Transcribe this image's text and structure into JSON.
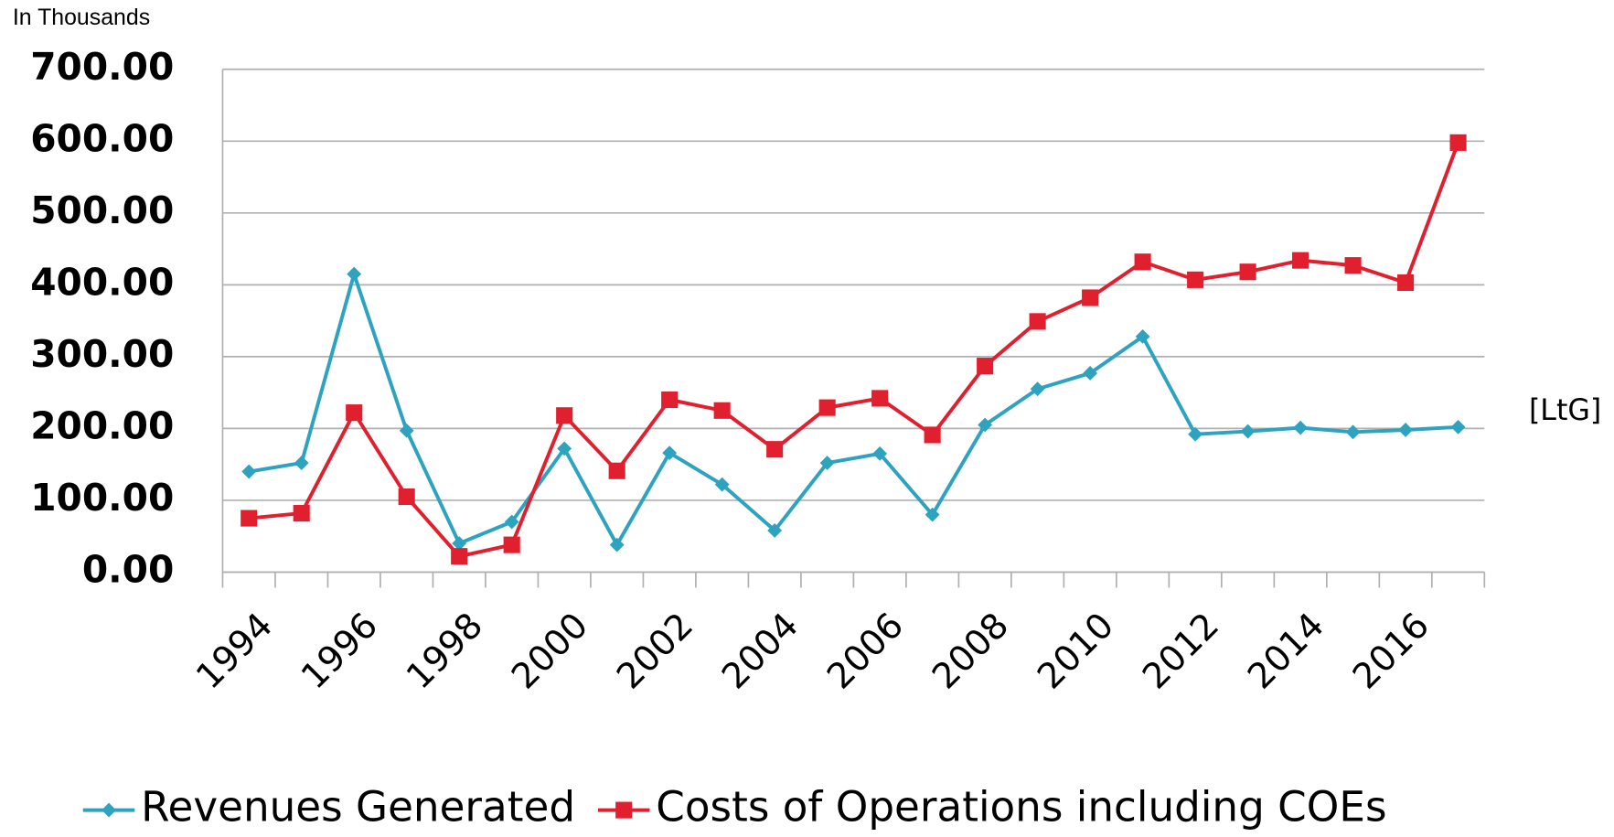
{
  "chart_data": {
    "type": "line",
    "y_axis_label": "In Thousands",
    "side_note": "[LtG]",
    "categories": [
      "1994",
      null,
      "1996",
      null,
      "1998",
      null,
      "2000",
      null,
      "2002",
      null,
      "2004",
      null,
      "2006",
      null,
      "2008",
      null,
      "2010",
      null,
      "2012",
      null,
      "2014",
      null,
      "2016",
      null
    ],
    "series": [
      {
        "name": "Revenues Generated",
        "color": "#2ea3c0",
        "marker": "diamond",
        "values": [
          140,
          152,
          415,
          197,
          40,
          70,
          172,
          38,
          166,
          122,
          58,
          152,
          165,
          80,
          205,
          255,
          277,
          328,
          192,
          196,
          201,
          195,
          198,
          202
        ]
      },
      {
        "name": "Costs of Operations including COEs",
        "color": "#e0202e",
        "marker": "square",
        "values": [
          75,
          82,
          222,
          105,
          22,
          38,
          218,
          141,
          240,
          225,
          171,
          229,
          242,
          191,
          287,
          349,
          382,
          432,
          407,
          418,
          434,
          427,
          403,
          598
        ]
      }
    ],
    "ylim": [
      0,
      700
    ],
    "yticks": [
      {
        "value": 0,
        "label": "0.00"
      },
      {
        "value": 100,
        "label": "100.00"
      },
      {
        "value": 200,
        "label": "200.00"
      },
      {
        "value": 300,
        "label": "300.00"
      },
      {
        "value": 400,
        "label": "400.00"
      },
      {
        "value": 500,
        "label": "500.00"
      },
      {
        "value": 600,
        "label": "600.00"
      },
      {
        "value": 700,
        "label": "700.00"
      }
    ],
    "grid": true,
    "legend": "bottom"
  }
}
